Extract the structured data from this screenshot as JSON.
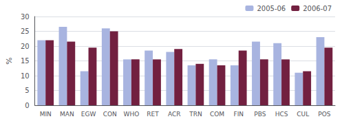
{
  "chart_data": {
    "type": "bar",
    "categories": [
      "MIN",
      "MAN",
      "EGW",
      "CON",
      "WHO",
      "RET",
      "ACR",
      "TRN",
      "COM",
      "FIN",
      "PBS",
      "HCS",
      "CUL",
      "POS"
    ],
    "series": [
      {
        "name": "2005-06",
        "color": "#a8b4e0",
        "values": [
          22,
          26.5,
          11.5,
          26,
          15.5,
          18.5,
          18,
          13.5,
          15.5,
          13.5,
          21.5,
          21,
          11,
          23
        ]
      },
      {
        "name": "2006-07",
        "color": "#722040",
        "values": [
          22,
          21.5,
          19.5,
          25,
          15.5,
          15.5,
          19,
          14,
          13.5,
          18.5,
          15.5,
          15.5,
          11.5,
          19.5
        ]
      }
    ],
    "ylabel": "%",
    "ylim": [
      0,
      30
    ],
    "yticks": [
      0,
      5,
      10,
      15,
      20,
      25,
      30
    ],
    "grid": true,
    "legend": "upper right"
  }
}
